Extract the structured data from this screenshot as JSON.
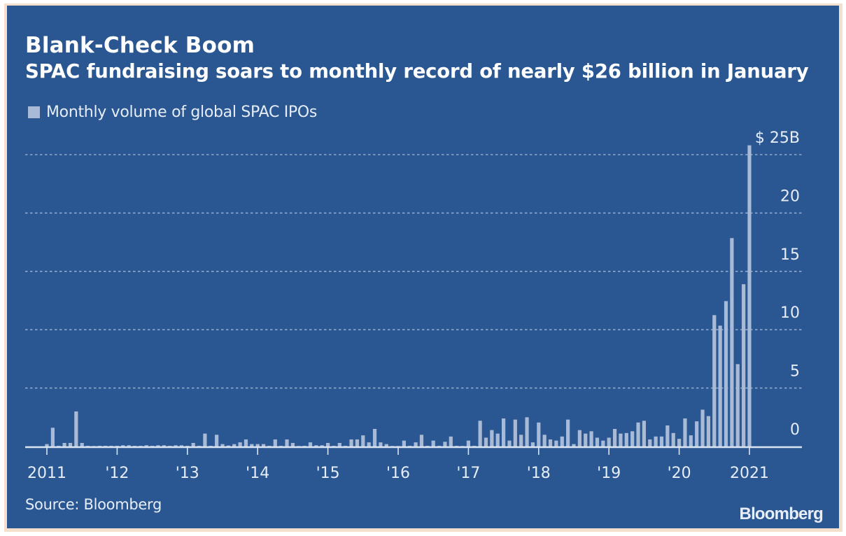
{
  "header": {
    "title": "Blank-Check Boom",
    "subtitle": "SPAC fundraising soars to monthly record of nearly $26 billion in January"
  },
  "legend": {
    "label": "Monthly volume of global SPAC IPOs",
    "swatch_color": "#a8bad6"
  },
  "footer": {
    "source": "Source: Bloomberg",
    "brand": "Bloomberg"
  },
  "colors": {
    "background": "#2a5792",
    "bar": "#a8bad6",
    "grid": "#8fa9cf",
    "axis": "#dbe4f1",
    "frame": "#f3dfcb"
  },
  "chart_data": {
    "type": "bar",
    "title": "Blank-Check Boom",
    "subtitle": "SPAC fundraising soars to monthly record of nearly $26 billion in January",
    "xlabel": "",
    "ylabel": "",
    "y_unit_label": "$ 25B",
    "ylim": [
      0,
      25
    ],
    "yticks": [
      0,
      5,
      10,
      15,
      20,
      25
    ],
    "ytick_labels": [
      "0",
      "5",
      "10",
      "15",
      "20",
      "$ 25B"
    ],
    "grid": true,
    "legend_position": "top-left",
    "x_start": "2011-01",
    "x_end": "2021-01",
    "frequency": "monthly",
    "xtick_labels": [
      "2011",
      "'12",
      "'13",
      "'14",
      "'15",
      "'16",
      "'17",
      "'18",
      "'19",
      "'20",
      "2021"
    ],
    "series": [
      {
        "name": "Monthly volume of global SPAC IPOs",
        "unit": "USD billions",
        "values": [
          0.2,
          1.6,
          0.05,
          0.3,
          0.3,
          3.0,
          0.3,
          0.05,
          0.02,
          0.05,
          0.05,
          0.05,
          0.05,
          0.1,
          0.1,
          0.05,
          0.05,
          0.1,
          0.05,
          0.1,
          0.1,
          0.05,
          0.1,
          0.1,
          0.05,
          0.3,
          0.05,
          1.1,
          0.05,
          1.0,
          0.2,
          0.08,
          0.2,
          0.35,
          0.6,
          0.2,
          0.2,
          0.2,
          0.05,
          0.6,
          0.05,
          0.6,
          0.3,
          0.02,
          0.05,
          0.35,
          0.1,
          0.1,
          0.3,
          0.05,
          0.3,
          0.05,
          0.6,
          0.6,
          0.95,
          0.35,
          1.5,
          0.35,
          0.2,
          0.02,
          0.02,
          0.5,
          0.05,
          0.35,
          1.0,
          0.05,
          0.5,
          0.05,
          0.4,
          0.85,
          0.05,
          0.02,
          0.5,
          0.05,
          2.2,
          0.75,
          1.4,
          1.1,
          2.4,
          0.5,
          2.3,
          1.0,
          2.5,
          0.35,
          2.05,
          1.0,
          0.6,
          0.5,
          0.85,
          2.3,
          0.2,
          1.4,
          1.1,
          1.3,
          0.75,
          0.5,
          0.75,
          1.5,
          1.1,
          1.15,
          1.3,
          2.05,
          2.2,
          0.6,
          0.85,
          0.85,
          1.8,
          1.15,
          0.65,
          2.4,
          0.95,
          2.15,
          3.15,
          2.6,
          11.25,
          10.35,
          12.45,
          17.85,
          7.05,
          13.9,
          25.8
        ]
      }
    ]
  }
}
